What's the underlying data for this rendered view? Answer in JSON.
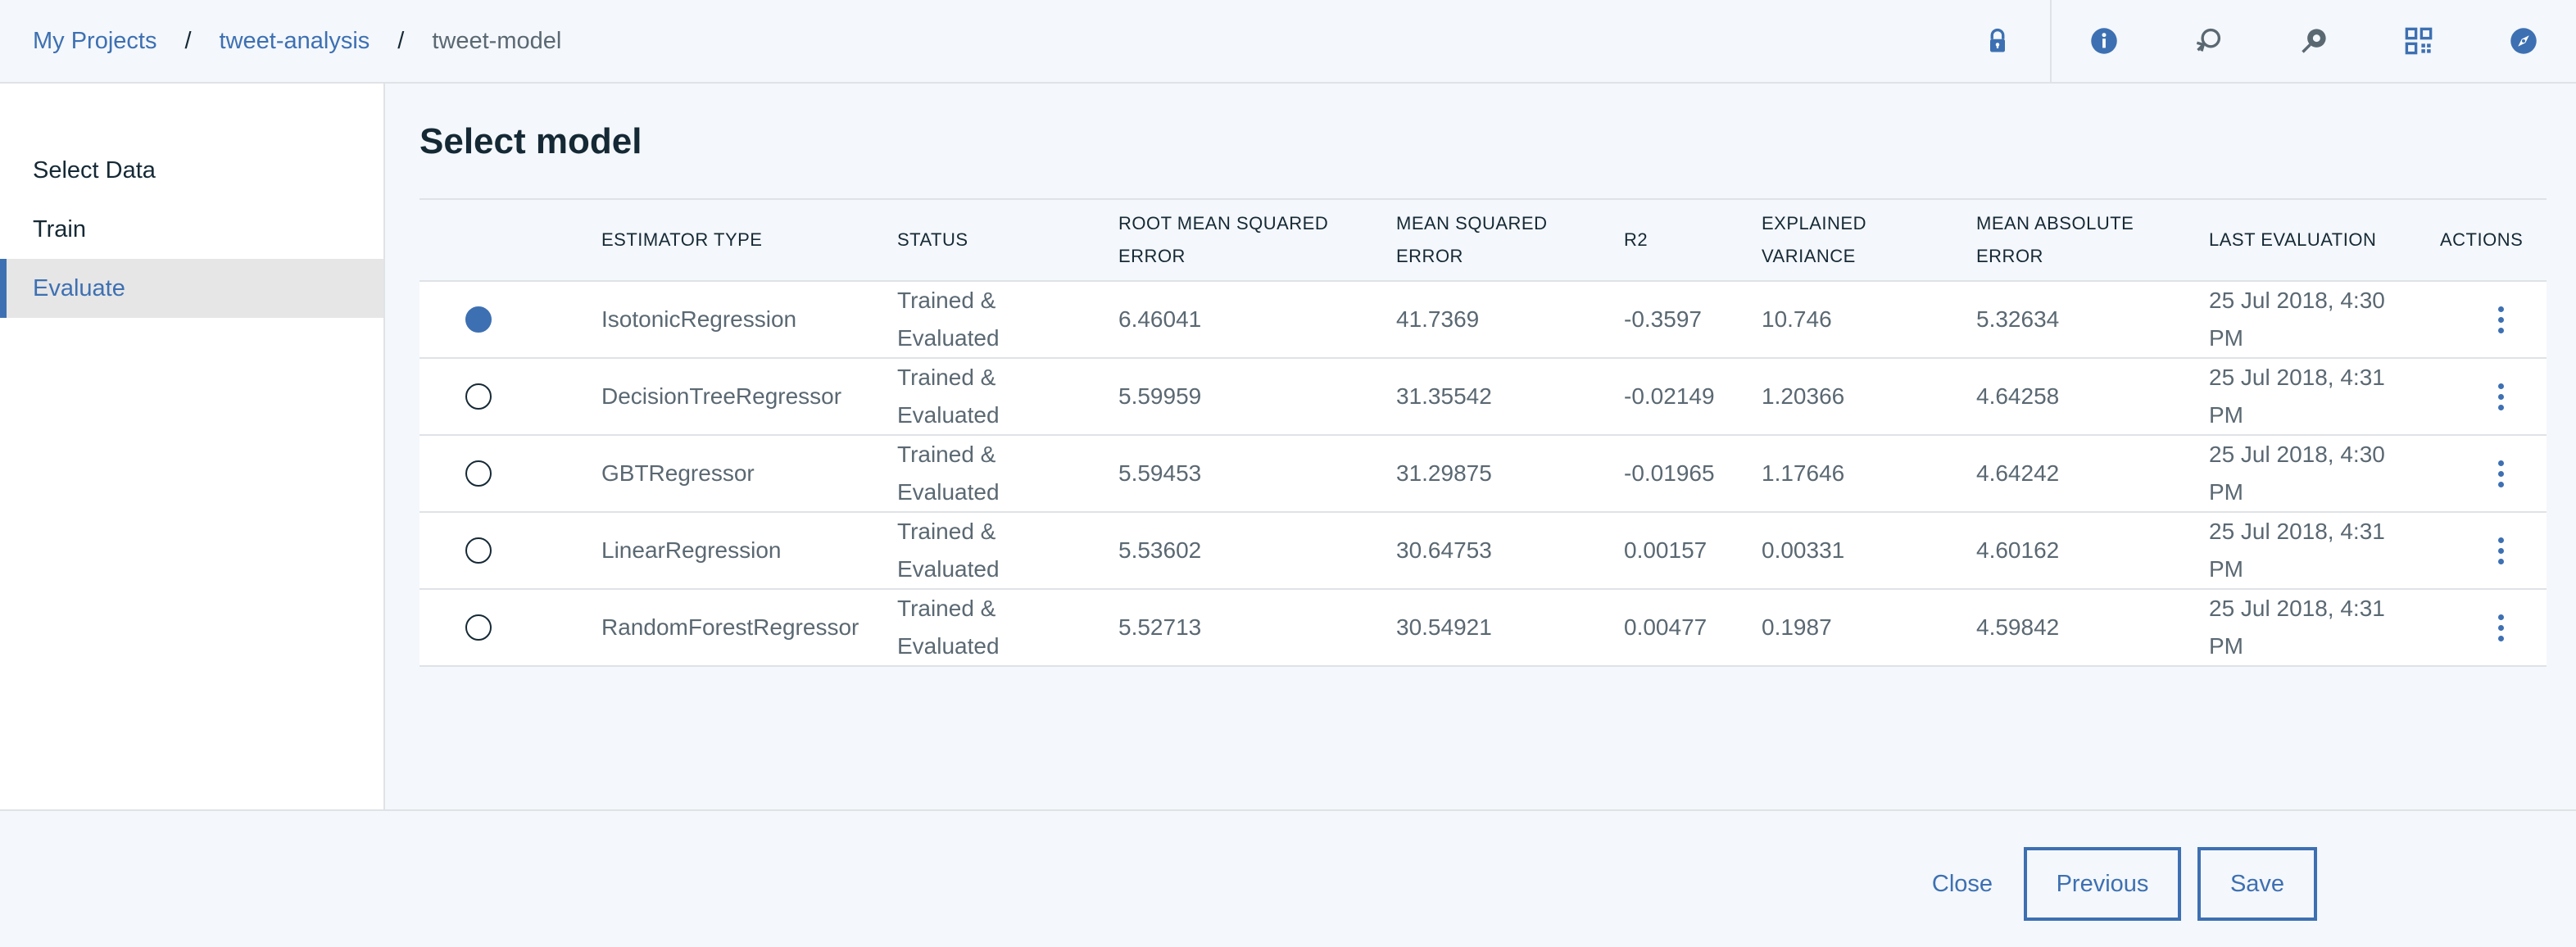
{
  "breadcrumb": {
    "project_list": "My Projects",
    "project": "tweet-analysis",
    "current": "tweet-model",
    "separator": "/"
  },
  "header_icons": [
    "lock-icon",
    "info-icon",
    "reset-icon",
    "deploy-icon",
    "grid-icon",
    "compass-icon"
  ],
  "sidebar": {
    "items": [
      {
        "label": "Select Data",
        "active": false
      },
      {
        "label": "Train",
        "active": false
      },
      {
        "label": "Evaluate",
        "active": true
      }
    ]
  },
  "main": {
    "title": "Select model",
    "table": {
      "headers": {
        "estimator": "ESTIMATOR TYPE",
        "status": "STATUS",
        "rmse_1": "ROOT MEAN SQUARED",
        "rmse_2": "ERROR",
        "mse_1": "MEAN SQUARED",
        "mse_2": "ERROR",
        "r2": "R2",
        "ev_1": "EXPLAINED",
        "ev_2": "VARIANCE",
        "mae_1": "MEAN ABSOLUTE",
        "mae_2": "ERROR",
        "last": "LAST EVALUATION",
        "actions": "ACTIONS"
      },
      "rows": [
        {
          "selected": true,
          "estimator": "IsotonicRegression",
          "status_1": "Trained &",
          "status_2": "Evaluated",
          "rmse": "6.46041",
          "mse": "41.7369",
          "r2": "-0.3597",
          "ev": "10.746",
          "mae": "5.32634",
          "last_1": "25 Jul 2018, 4:30",
          "last_2": "PM"
        },
        {
          "selected": false,
          "estimator": "DecisionTreeRegressor",
          "status_1": "Trained &",
          "status_2": "Evaluated",
          "rmse": "5.59959",
          "mse": "31.35542",
          "r2": "-0.02149",
          "ev": "1.20366",
          "mae": "4.64258",
          "last_1": "25 Jul 2018, 4:31",
          "last_2": "PM"
        },
        {
          "selected": false,
          "estimator": "GBTRegressor",
          "status_1": "Trained &",
          "status_2": "Evaluated",
          "rmse": "5.59453",
          "mse": "31.29875",
          "r2": "-0.01965",
          "ev": "1.17646",
          "mae": "4.64242",
          "last_1": "25 Jul 2018, 4:30",
          "last_2": "PM"
        },
        {
          "selected": false,
          "estimator": "LinearRegression",
          "status_1": "Trained &",
          "status_2": "Evaluated",
          "rmse": "5.53602",
          "mse": "30.64753",
          "r2": "0.00157",
          "ev": "0.00331",
          "mae": "4.60162",
          "last_1": "25 Jul 2018, 4:31",
          "last_2": "PM"
        },
        {
          "selected": false,
          "estimator": "RandomForestRegressor",
          "status_1": "Trained &",
          "status_2": "Evaluated",
          "rmse": "5.52713",
          "mse": "30.54921",
          "r2": "0.00477",
          "ev": "0.1987",
          "mae": "4.59842",
          "last_1": "25 Jul 2018, 4:31",
          "last_2": "PM"
        }
      ]
    }
  },
  "footer": {
    "close_label": "Close",
    "previous_label": "Previous",
    "save_label": "Save"
  },
  "colors": {
    "accent": "#3d70b2",
    "text": "#152935",
    "muted": "#5a6872",
    "background": "#f4f7fb"
  }
}
